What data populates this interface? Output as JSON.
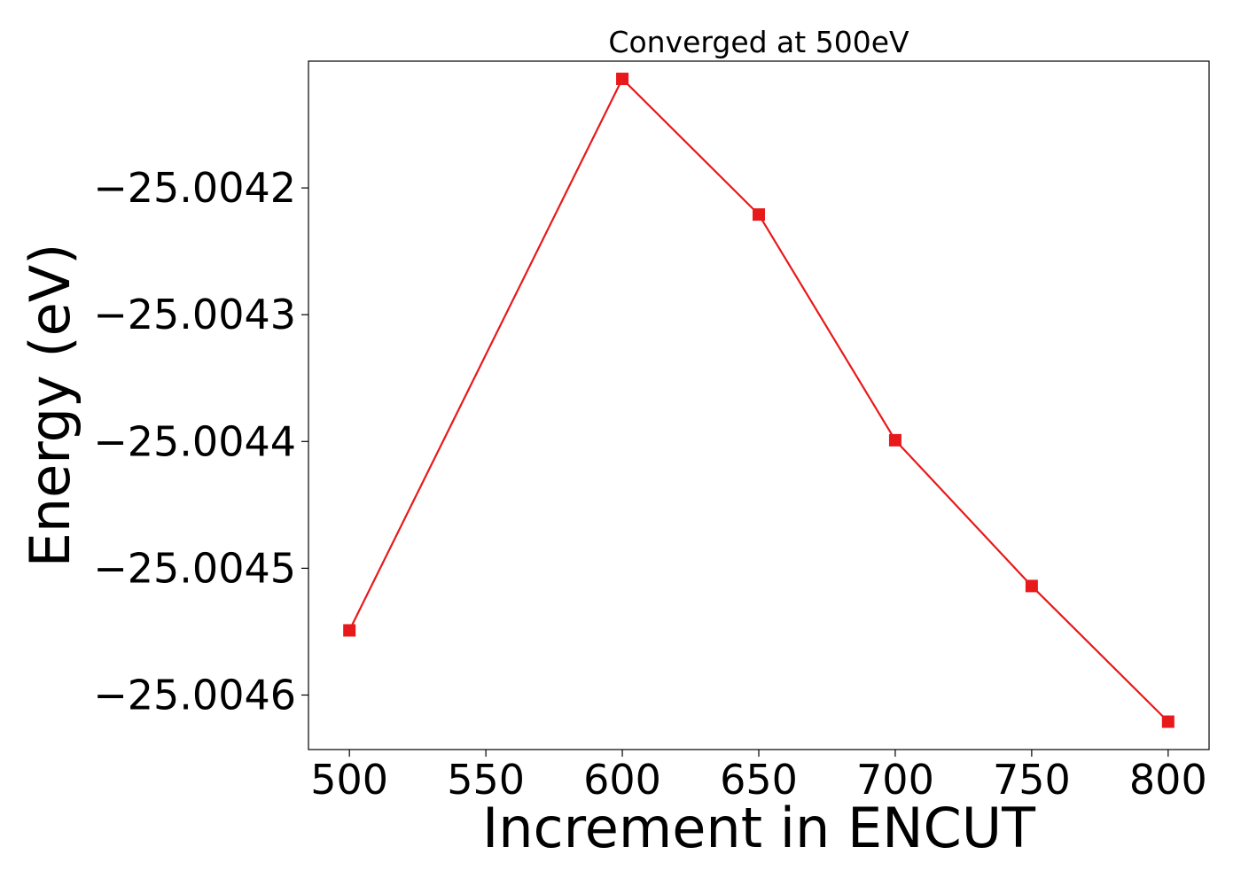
{
  "chart_data": {
    "type": "line",
    "title": "Converged at 500eV",
    "xlabel": "Increment in ENCUT",
    "ylabel": "Energy (eV)",
    "x": [
      500,
      600,
      650,
      700,
      750,
      800
    ],
    "series": [
      {
        "values": [
          -25.004549,
          -25.004114,
          -25.004221,
          -25.004399,
          -25.004514,
          -25.004621
        ],
        "color": "#e8191a",
        "marker": "square"
      }
    ],
    "xticks": [
      500,
      550,
      600,
      650,
      700,
      750,
      800
    ],
    "xtick_labels": [
      "500",
      "550",
      "600",
      "650",
      "700",
      "750",
      "800"
    ],
    "yticks": [
      -25.0042,
      -25.0043,
      -25.0044,
      -25.0045,
      -25.0046
    ],
    "ytick_labels": [
      "−25.0042",
      "−25.0043",
      "−25.0044",
      "−25.0045",
      "−25.0046"
    ],
    "xlim": [
      485,
      815
    ],
    "ylim": [
      -25.004643,
      -25.0041
    ],
    "grid": false,
    "legend": "none"
  }
}
